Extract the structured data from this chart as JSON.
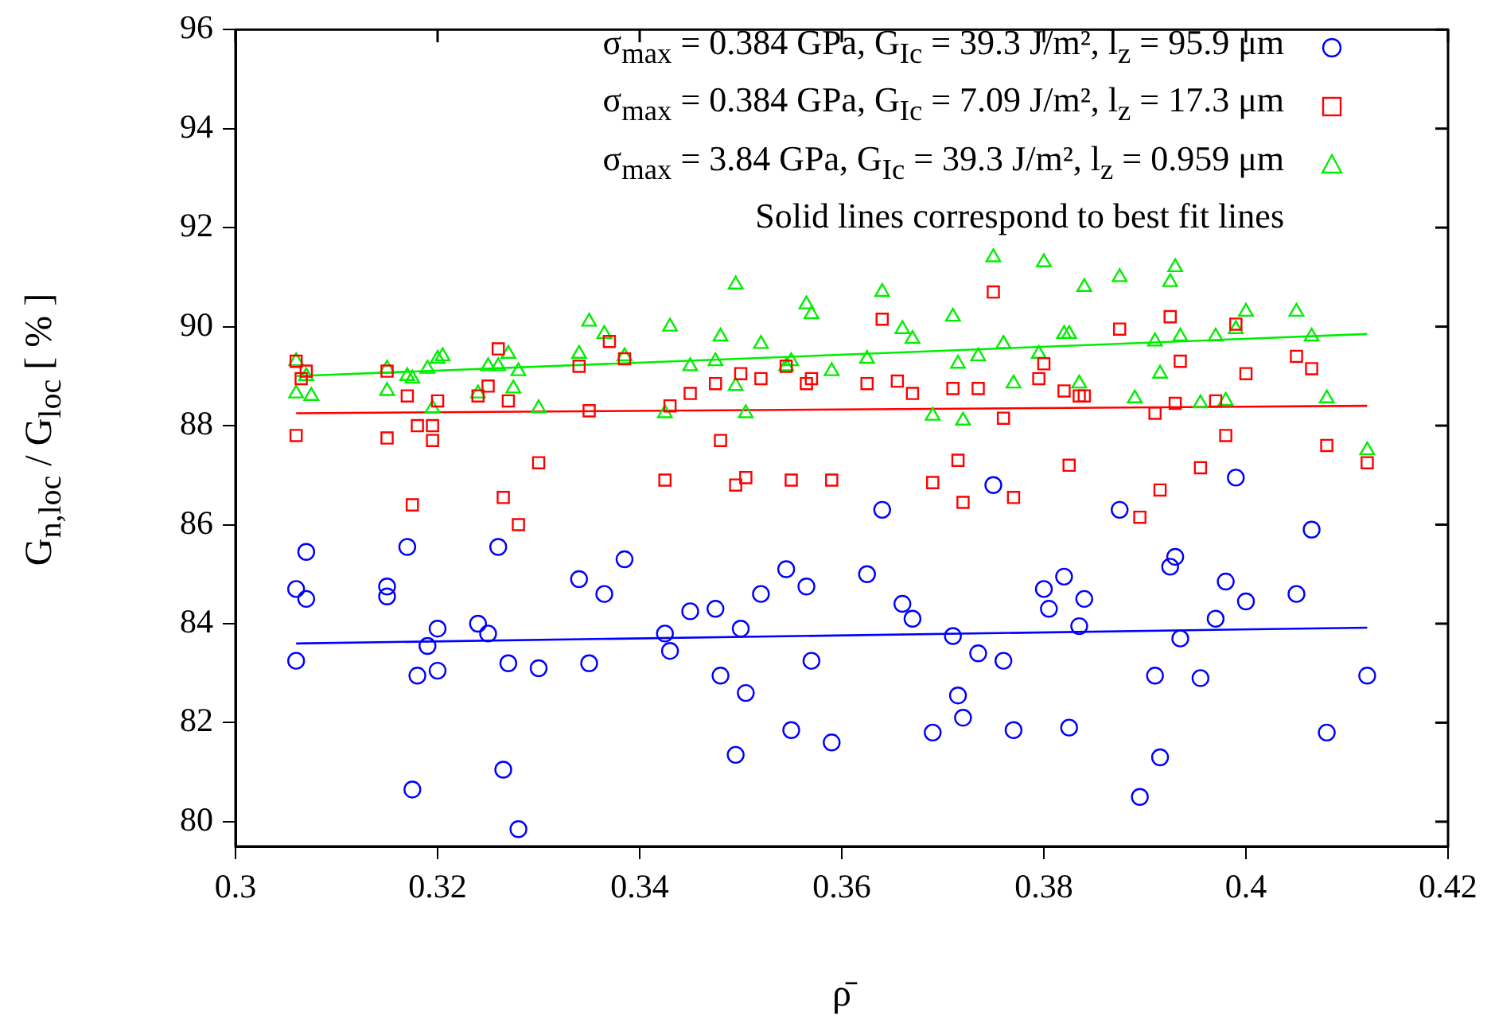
{
  "chart_data": {
    "type": "scatter",
    "xlabel": "ρ̄",
    "ylabel": "G$_{n,loc}$ / G$_{loc}$ [ % ]",
    "xlim": [
      0.3,
      0.42
    ],
    "xticks": [
      0.3,
      0.32,
      0.34,
      0.36,
      0.38,
      0.4,
      0.42
    ],
    "ylim": [
      79.5,
      96
    ],
    "yticks": [
      80,
      82,
      84,
      86,
      88,
      90,
      92,
      94,
      96
    ],
    "grid": false,
    "legend": "top right",
    "annotations": [
      "Solid lines correspond to best fit lines"
    ],
    "series": [
      {
        "name": "σ$_{max}$ = 0.384 GPa, G$_{Ic}$ = 39.3 J/m², l$_{z}$ = 95.9 μm",
        "color": "#0000ff",
        "marker": "circle",
        "x": [
          0.306,
          0.306,
          0.307,
          0.307,
          0.315,
          0.315,
          0.317,
          0.3175,
          0.318,
          0.319,
          0.32,
          0.32,
          0.324,
          0.325,
          0.326,
          0.3265,
          0.327,
          0.328,
          0.33,
          0.334,
          0.335,
          0.3365,
          0.3385,
          0.3425,
          0.343,
          0.345,
          0.3475,
          0.348,
          0.3495,
          0.35,
          0.3505,
          0.352,
          0.3545,
          0.355,
          0.3565,
          0.357,
          0.359,
          0.3625,
          0.364,
          0.366,
          0.367,
          0.369,
          0.371,
          0.3715,
          0.372,
          0.3735,
          0.375,
          0.376,
          0.377,
          0.3805,
          0.38,
          0.382,
          0.3825,
          0.3835,
          0.384,
          0.3875,
          0.3895,
          0.391,
          0.3915,
          0.3925,
          0.393,
          0.3935,
          0.3955,
          0.397,
          0.398,
          0.399,
          0.4,
          0.405,
          0.4065,
          0.408,
          0.412
        ],
        "values": [
          84.7,
          83.25,
          84.5,
          85.45,
          84.75,
          84.55,
          85.55,
          80.65,
          82.95,
          83.55,
          83.9,
          83.05,
          84.0,
          83.8,
          85.55,
          81.05,
          83.2,
          79.85,
          83.1,
          84.9,
          83.2,
          84.6,
          85.3,
          83.8,
          83.45,
          84.25,
          84.3,
          82.95,
          81.35,
          83.9,
          82.6,
          84.6,
          85.1,
          81.85,
          84.75,
          83.25,
          81.6,
          85.0,
          86.3,
          84.4,
          84.1,
          81.8,
          83.75,
          82.55,
          82.1,
          83.4,
          86.8,
          83.25,
          81.85,
          84.3,
          84.7,
          84.95,
          81.9,
          83.95,
          84.5,
          86.3,
          80.5,
          82.95,
          81.3,
          85.15,
          85.35,
          83.7,
          82.9,
          84.1,
          84.85,
          86.95,
          84.45,
          84.6,
          85.9,
          81.8,
          82.95
        ]
      },
      {
        "name": "σ$_{max}$ = 0.384 GPa, G$_{Ic}$ = 7.09 J/m², l$_{z}$ = 17.3 μm",
        "color": "#ff0000",
        "marker": "square",
        "x": [
          0.306,
          0.306,
          0.307,
          0.3065,
          0.315,
          0.315,
          0.317,
          0.3175,
          0.318,
          0.3195,
          0.3195,
          0.32,
          0.324,
          0.325,
          0.326,
          0.3265,
          0.327,
          0.328,
          0.33,
          0.334,
          0.335,
          0.337,
          0.3385,
          0.3425,
          0.343,
          0.345,
          0.3475,
          0.348,
          0.3495,
          0.35,
          0.3505,
          0.352,
          0.3545,
          0.355,
          0.3565,
          0.357,
          0.359,
          0.3625,
          0.364,
          0.3655,
          0.367,
          0.369,
          0.371,
          0.3715,
          0.372,
          0.3735,
          0.375,
          0.376,
          0.377,
          0.3795,
          0.38,
          0.382,
          0.3825,
          0.3835,
          0.384,
          0.3875,
          0.3895,
          0.391,
          0.3915,
          0.3925,
          0.3935,
          0.393,
          0.3955,
          0.397,
          0.398,
          0.399,
          0.4,
          0.405,
          0.4065,
          0.408,
          0.412
        ],
        "values": [
          89.3,
          87.8,
          89.1,
          88.95,
          89.1,
          87.75,
          88.6,
          86.4,
          88.0,
          87.7,
          88.0,
          88.5,
          88.6,
          88.8,
          89.55,
          86.55,
          88.5,
          86.0,
          87.25,
          89.2,
          88.3,
          89.7,
          89.35,
          86.9,
          88.4,
          88.65,
          88.85,
          87.7,
          86.8,
          89.05,
          86.95,
          88.95,
          89.2,
          86.9,
          88.85,
          88.95,
          86.9,
          88.85,
          90.15,
          88.9,
          88.65,
          86.85,
          88.75,
          87.3,
          86.45,
          88.75,
          90.7,
          88.15,
          86.55,
          88.95,
          89.25,
          88.7,
          87.2,
          88.6,
          88.6,
          89.95,
          86.15,
          88.25,
          86.7,
          90.2,
          89.3,
          88.45,
          87.15,
          88.5,
          87.8,
          90.05,
          89.05,
          89.4,
          89.15,
          87.6,
          87.25
        ]
      },
      {
        "name": "σ$_{max}$ = 3.84 GPa, G$_{Ic}$ = 39.3 J/m², l$_{z}$ = 0.959 μm",
        "color": "#00ee00",
        "marker": "triangle",
        "x": [
          0.306,
          0.306,
          0.307,
          0.3075,
          0.315,
          0.315,
          0.317,
          0.3175,
          0.319,
          0.3195,
          0.32,
          0.3205,
          0.324,
          0.325,
          0.326,
          0.327,
          0.3275,
          0.328,
          0.33,
          0.334,
          0.335,
          0.3365,
          0.3385,
          0.3425,
          0.343,
          0.345,
          0.3475,
          0.348,
          0.3495,
          0.3495,
          0.3505,
          0.352,
          0.3545,
          0.355,
          0.3565,
          0.357,
          0.359,
          0.3625,
          0.364,
          0.366,
          0.367,
          0.369,
          0.371,
          0.3715,
          0.372,
          0.3735,
          0.375,
          0.376,
          0.377,
          0.3795,
          0.38,
          0.382,
          0.3825,
          0.3835,
          0.384,
          0.3875,
          0.389,
          0.391,
          0.3915,
          0.3925,
          0.393,
          0.3935,
          0.3955,
          0.397,
          0.398,
          0.399,
          0.4,
          0.405,
          0.4065,
          0.408,
          0.412
        ],
        "values": [
          89.3,
          88.65,
          89.0,
          88.6,
          89.15,
          88.7,
          89.0,
          88.95,
          89.15,
          88.35,
          89.35,
          89.4,
          88.65,
          89.2,
          89.2,
          89.45,
          88.75,
          89.1,
          88.35,
          89.45,
          90.1,
          89.85,
          89.4,
          88.25,
          90.0,
          89.2,
          89.3,
          89.8,
          88.8,
          90.85,
          88.25,
          89.65,
          89.2,
          89.3,
          90.45,
          90.25,
          89.1,
          89.35,
          90.7,
          89.95,
          89.75,
          88.2,
          90.2,
          89.25,
          88.1,
          89.4,
          91.4,
          89.65,
          88.85,
          89.45,
          91.3,
          89.85,
          89.85,
          88.85,
          90.8,
          91.0,
          88.55,
          89.7,
          89.05,
          90.9,
          91.2,
          89.8,
          88.45,
          89.8,
          88.5,
          89.95,
          90.3,
          90.3,
          89.8,
          88.55,
          87.5
        ]
      },
      {
        "color": "#0000ff",
        "marker": "none",
        "type": "line",
        "x": [
          0.306,
          0.412
        ],
        "values": [
          83.6,
          83.92
        ]
      },
      {
        "color": "#ff0000",
        "marker": "none",
        "type": "line",
        "x": [
          0.306,
          0.412
        ],
        "values": [
          88.25,
          88.4
        ]
      },
      {
        "color": "#00ee00",
        "marker": "none",
        "type": "line",
        "x": [
          0.306,
          0.412
        ],
        "values": [
          89.0,
          89.85
        ]
      }
    ]
  }
}
